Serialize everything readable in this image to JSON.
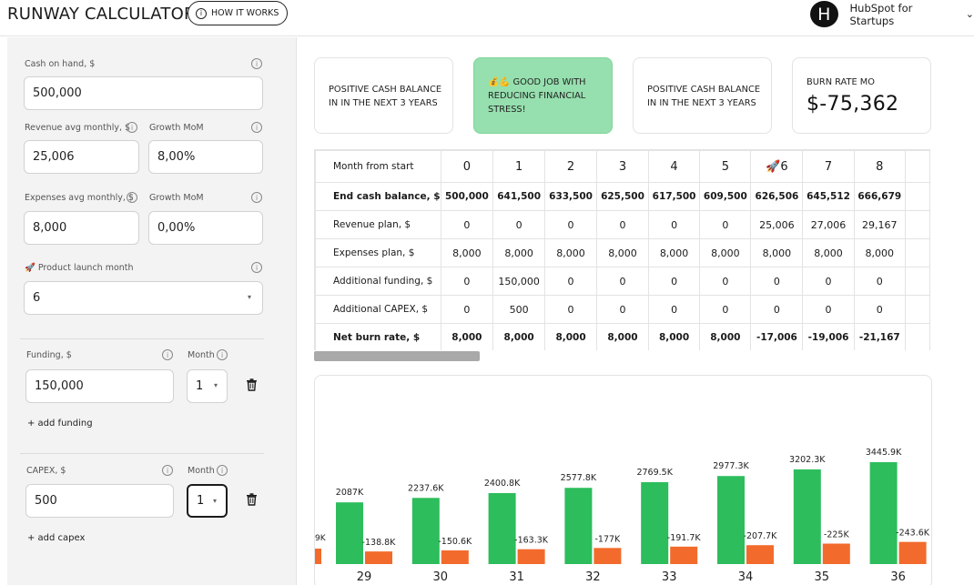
{
  "header": {
    "title": "RUNWAY CALCULATOR",
    "how_it_works": "HOW IT WORKS",
    "brand_letter": "H",
    "brand_name": "HubSpot for Startups"
  },
  "inputs": {
    "cash_on_hand_label": "Cash on hand, $",
    "cash_on_hand": "500,000",
    "revenue_label": "Revenue avg monthly, $",
    "revenue": "25,006",
    "revenue_growth_label": "Growth MoM",
    "revenue_growth": "8,00%",
    "expenses_label": "Expenses avg monthly, $",
    "expenses": "8,000",
    "expenses_growth_label": "Growth MoM",
    "expenses_growth": "0,00%",
    "launch_label": "🚀 Product launch month",
    "launch_month": "6",
    "funding_label": "Funding, $",
    "funding_month_label": "Month",
    "funding": "150,000",
    "funding_month": "1",
    "add_funding": "+ add funding",
    "capex_label": "CAPEX, $",
    "capex_month_label": "Month",
    "capex": "500",
    "capex_month": "1",
    "add_capex": "+ add capex"
  },
  "cards": [
    {
      "text": "POSITIVE CASH BALANCE IN IN THE NEXT 3 YEARS"
    },
    {
      "text": "💰💪 GOOD JOB WITH REDUCING FINANCIAL STRESS!"
    },
    {
      "text": "POSITIVE CASH BALANCE IN IN THE NEXT 3 YEARS"
    },
    {
      "title": "BURN RATE MO",
      "value": "$-75,362"
    }
  ],
  "table": {
    "header_label": "Month from start",
    "months": [
      "0",
      "1",
      "2",
      "3",
      "4",
      "5",
      "🚀6",
      "7",
      "8"
    ],
    "rows": [
      {
        "label": "End cash balance, $",
        "bold": true,
        "values": [
          "500,000",
          "641,500",
          "633,500",
          "625,500",
          "617,500",
          "609,500",
          "626,506",
          "645,512",
          "666,679"
        ]
      },
      {
        "label": "Revenue plan, $",
        "bold": false,
        "values": [
          "0",
          "0",
          "0",
          "0",
          "0",
          "0",
          "25,006",
          "27,006",
          "29,167"
        ]
      },
      {
        "label": "Expenses plan, $",
        "bold": false,
        "values": [
          "8,000",
          "8,000",
          "8,000",
          "8,000",
          "8,000",
          "8,000",
          "8,000",
          "8,000",
          "8,000"
        ]
      },
      {
        "label": "Additional funding, $",
        "bold": false,
        "values": [
          "0",
          "150,000",
          "0",
          "0",
          "0",
          "0",
          "0",
          "0",
          "0"
        ]
      },
      {
        "label": "Additional CAPEX, $",
        "bold": false,
        "values": [
          "0",
          "500",
          "0",
          "0",
          "0",
          "0",
          "0",
          "0",
          "0"
        ]
      },
      {
        "label": "Net burn rate, $",
        "bold": true,
        "values": [
          "8,000",
          "8,000",
          "8,000",
          "8,000",
          "8,000",
          "8,000",
          "-17,006",
          "-19,006",
          "-21,167"
        ]
      }
    ]
  },
  "chart_data": {
    "type": "bar",
    "categories": [
      "29",
      "30",
      "31",
      "32",
      "33",
      "34",
      "35",
      "36"
    ],
    "series": [
      {
        "color": "#2dbd5c",
        "values": [
          2087,
          2237.6,
          2400.8,
          2577.8,
          2769.5,
          2977.3,
          3202.3,
          3445.9
        ],
        "labels": [
          "2087K",
          "2237.6K",
          "2400.8K",
          "2577.8K",
          "2769.5K",
          "2977.3K",
          "3202.3K",
          "3445.9K"
        ]
      },
      {
        "color": "#f26b2c",
        "values": [
          -138.8,
          -150.6,
          -163.3,
          -177,
          -191.7,
          -207.7,
          -225,
          -243.6
        ],
        "labels": [
          "-138.8K",
          "-150.6K",
          "-163.3K",
          "-177K",
          "-191.7K",
          "-207.7K",
          "-225K",
          "-243.6K"
        ]
      }
    ],
    "partial_left_label": "9K",
    "ylim": [
      0,
      4500
    ],
    "grid": false
  }
}
